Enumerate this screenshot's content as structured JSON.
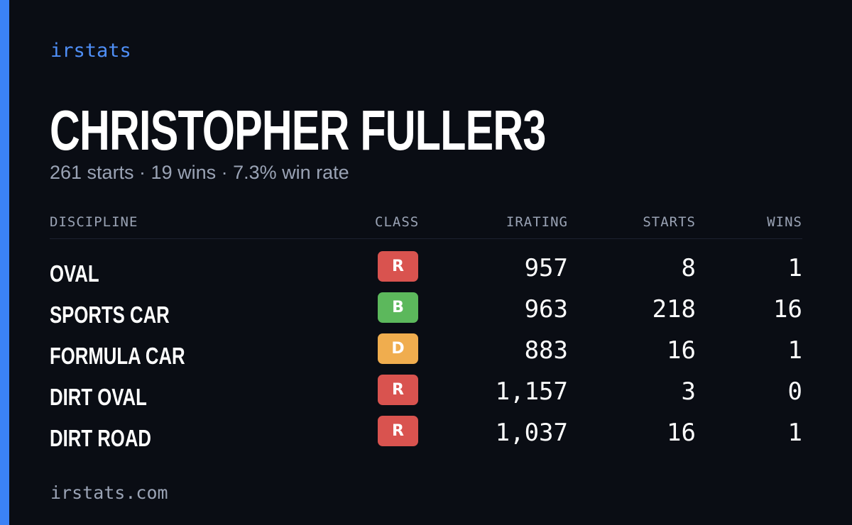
{
  "brand": "irstats",
  "player": {
    "name": "CHRISTOPHER FULLER3",
    "summary": "261 starts · 19 wins · 7.3% win rate"
  },
  "table": {
    "headers": {
      "discipline": "DISCIPLINE",
      "class": "CLASS",
      "irating": "IRATING",
      "starts": "STARTS",
      "wins": "WINS"
    },
    "rows": [
      {
        "discipline": "OVAL",
        "class": "R",
        "irating": "957",
        "starts": "8",
        "wins": "1"
      },
      {
        "discipline": "SPORTS CAR",
        "class": "B",
        "irating": "963",
        "starts": "218",
        "wins": "16"
      },
      {
        "discipline": "FORMULA CAR",
        "class": "D",
        "irating": "883",
        "starts": "16",
        "wins": "1"
      },
      {
        "discipline": "DIRT OVAL",
        "class": "R",
        "irating": "1,157",
        "starts": "3",
        "wins": "0"
      },
      {
        "discipline": "DIRT ROAD",
        "class": "R",
        "irating": "1,037",
        "starts": "16",
        "wins": "1"
      }
    ]
  },
  "class_colors": {
    "R": "#d9534f",
    "B": "#5cb85c",
    "D": "#f0ad4e"
  },
  "colors": {
    "accent": "#3b82f6",
    "background": "#0a0d14"
  },
  "footer": "irstats.com"
}
